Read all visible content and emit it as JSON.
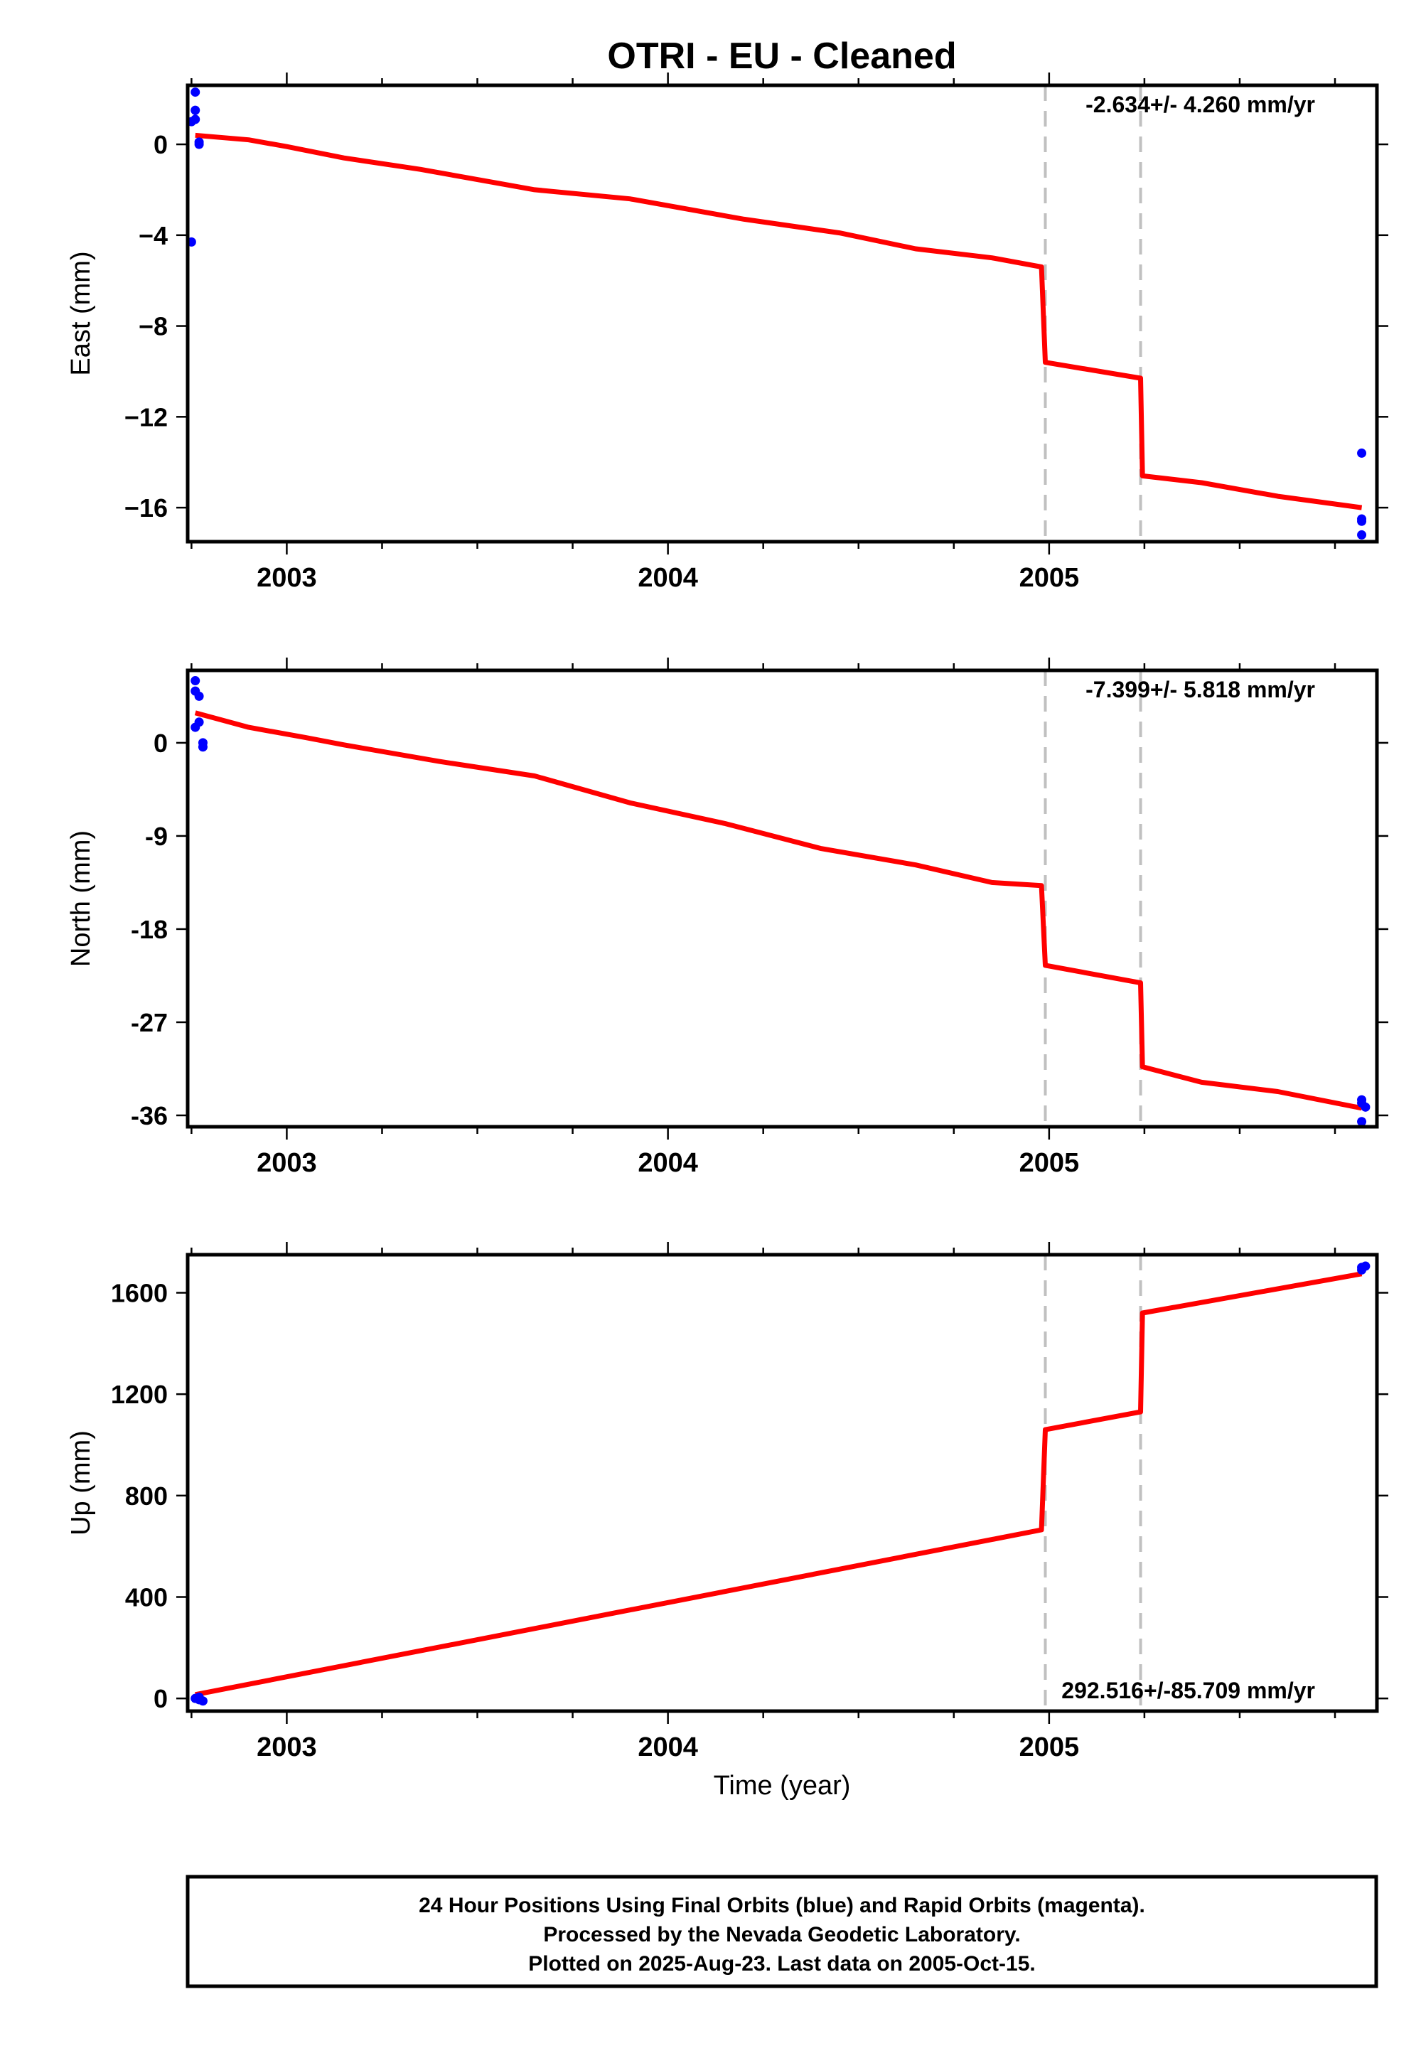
{
  "title": "OTRI  - EU - Cleaned",
  "xlabel": "Time (year)",
  "footer": {
    "line1": "24 Hour Positions Using Final Orbits (blue) and Rapid Orbits (magenta).",
    "line2": "Processed by the Nevada Geodetic Laboratory.",
    "line3": "Plotted on 2025-Aug-23. Last data on 2005-Oct-15."
  },
  "colors": {
    "data": "#0000ff",
    "model": "#ff0000",
    "offsets": "#c0c0c0"
  },
  "chart_data": [
    {
      "type": "scatter",
      "ylabel": "East (mm)",
      "rate_label": "-2.634+/- 4.260 mm/yr",
      "rate_position": "top-right",
      "xlim": [
        2002.74,
        2005.86
      ],
      "ylim": [
        -17.5,
        2.6
      ],
      "xticks": [
        2003,
        2004,
        2005
      ],
      "yticks": [
        0,
        -4,
        -8,
        -12,
        -16
      ],
      "ytick_labels": [
        "0",
        "−4",
        "−8",
        "−12",
        "−16"
      ],
      "offset_lines": [
        2004.99,
        2005.24
      ],
      "points": [
        [
          2002.76,
          2.3
        ],
        [
          2002.76,
          1.5
        ],
        [
          2002.75,
          1.0
        ],
        [
          2002.76,
          1.1
        ],
        [
          2002.77,
          0.1
        ],
        [
          2002.77,
          0.0
        ],
        [
          2002.75,
          -4.3
        ],
        [
          2005.82,
          -13.6
        ],
        [
          2005.82,
          -16.5
        ],
        [
          2005.82,
          -16.6
        ],
        [
          2005.82,
          -17.2
        ]
      ],
      "model": [
        [
          2002.76,
          0.4
        ],
        [
          2002.9,
          0.2
        ],
        [
          2003.0,
          -0.1
        ],
        [
          2003.15,
          -0.6
        ],
        [
          2003.35,
          -1.1
        ],
        [
          2003.65,
          -2.0
        ],
        [
          2003.9,
          -2.4
        ],
        [
          2004.2,
          -3.3
        ],
        [
          2004.45,
          -3.9
        ],
        [
          2004.65,
          -4.6
        ],
        [
          2004.85,
          -5.0
        ],
        [
          2004.98,
          -5.4
        ],
        [
          2004.99,
          -9.6
        ],
        [
          2005.24,
          -10.3
        ],
        [
          2005.245,
          -14.6
        ],
        [
          2005.4,
          -14.9
        ],
        [
          2005.6,
          -15.5
        ],
        [
          2005.82,
          -16.0
        ]
      ]
    },
    {
      "type": "scatter",
      "ylabel": "North (mm)",
      "rate_label": "-7.399+/- 5.818 mm/yr",
      "rate_position": "top-right",
      "xlim": [
        2002.74,
        2005.86
      ],
      "ylim": [
        -37.1,
        7.0
      ],
      "xticks": [
        2003,
        2004,
        2005
      ],
      "yticks": [
        0,
        -9,
        -18,
        -27,
        -36
      ],
      "ytick_labels": [
        "0",
        "-9",
        "-18",
        "-27",
        "-36"
      ],
      "offset_lines": [
        2004.99,
        2005.24
      ],
      "points": [
        [
          2002.76,
          6.0
        ],
        [
          2002.76,
          5.0
        ],
        [
          2002.77,
          4.5
        ],
        [
          2002.77,
          2.0
        ],
        [
          2002.76,
          1.5
        ],
        [
          2002.78,
          0.0
        ],
        [
          2002.78,
          -0.4
        ],
        [
          2005.82,
          -34.5
        ],
        [
          2005.82,
          -34.8
        ],
        [
          2005.83,
          -35.2
        ],
        [
          2005.82,
          -36.6
        ]
      ],
      "model": [
        [
          2002.76,
          2.9
        ],
        [
          2002.9,
          1.5
        ],
        [
          2003.05,
          0.5
        ],
        [
          2003.15,
          -0.2
        ],
        [
          2003.4,
          -1.8
        ],
        [
          2003.65,
          -3.2
        ],
        [
          2003.9,
          -5.8
        ],
        [
          2004.15,
          -7.8
        ],
        [
          2004.4,
          -10.2
        ],
        [
          2004.65,
          -11.8
        ],
        [
          2004.85,
          -13.5
        ],
        [
          2004.98,
          -13.8
        ],
        [
          2004.99,
          -21.5
        ],
        [
          2005.24,
          -23.2
        ],
        [
          2005.245,
          -31.3
        ],
        [
          2005.4,
          -32.8
        ],
        [
          2005.6,
          -33.7
        ],
        [
          2005.82,
          -35.3
        ]
      ]
    },
    {
      "type": "scatter",
      "ylabel": "Up (mm)",
      "rate_label": "292.516+/-85.709 mm/yr",
      "rate_position": "bottom-right",
      "xlim": [
        2002.74,
        2005.86
      ],
      "ylim": [
        -50,
        1750
      ],
      "xticks": [
        2003,
        2004,
        2005
      ],
      "yticks": [
        0,
        400,
        800,
        1200,
        1600
      ],
      "ytick_labels": [
        "0",
        "400",
        "800",
        "1200",
        "1600"
      ],
      "offset_lines": [
        2004.99,
        2005.24
      ],
      "points": [
        [
          2002.76,
          0
        ],
        [
          2002.77,
          -5
        ],
        [
          2002.77,
          5
        ],
        [
          2002.78,
          -10
        ],
        [
          2005.82,
          1700
        ],
        [
          2005.83,
          1705
        ],
        [
          2005.82,
          1690
        ]
      ],
      "model": [
        [
          2002.76,
          15
        ],
        [
          2004.98,
          665
        ],
        [
          2004.99,
          1060
        ],
        [
          2005.24,
          1130
        ],
        [
          2005.245,
          1520
        ],
        [
          2005.82,
          1675
        ]
      ]
    }
  ]
}
